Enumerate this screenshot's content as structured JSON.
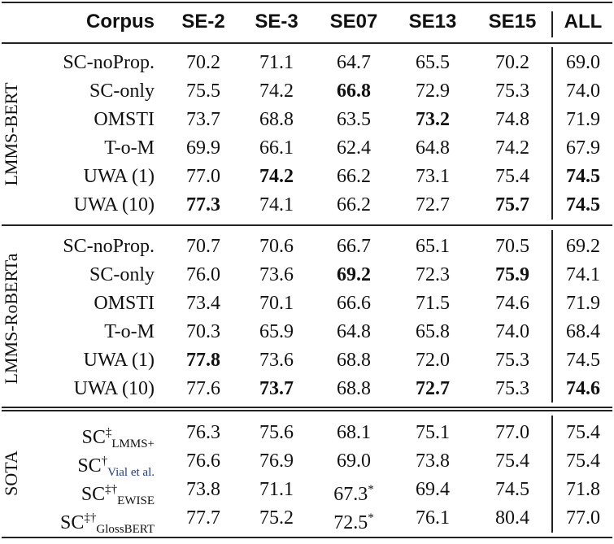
{
  "header": {
    "corpus_label": "Corpus",
    "columns": [
      "SE-2",
      "SE-3",
      "SE07",
      "SE13",
      "SE15",
      "ALL"
    ]
  },
  "groups": [
    {
      "name": "LMMS-BERT",
      "rows": [
        {
          "label": "SC-noProp.",
          "values": [
            "70.2",
            "71.1",
            "64.7",
            "65.5",
            "70.2",
            "69.0"
          ],
          "bold": []
        },
        {
          "label": "SC-only",
          "values": [
            "75.5",
            "74.2",
            "66.8",
            "72.9",
            "75.3",
            "74.0"
          ],
          "bold": [
            2
          ]
        },
        {
          "label": "OMSTI",
          "values": [
            "73.7",
            "68.8",
            "63.5",
            "73.2",
            "74.8",
            "71.9"
          ],
          "bold": [
            3
          ]
        },
        {
          "label": "T-o-M",
          "values": [
            "69.9",
            "66.1",
            "62.4",
            "64.8",
            "74.2",
            "67.9"
          ],
          "bold": []
        },
        {
          "label": "UWA (1)",
          "values": [
            "77.0",
            "74.2",
            "66.2",
            "73.1",
            "75.4",
            "74.5"
          ],
          "bold": [
            1,
            5
          ]
        },
        {
          "label": "UWA (10)",
          "values": [
            "77.3",
            "74.1",
            "66.2",
            "72.7",
            "75.7",
            "74.5"
          ],
          "bold": [
            0,
            4,
            5
          ]
        }
      ]
    },
    {
      "name": "LMMS-RoBERTa",
      "rows": [
        {
          "label": "SC-noProp.",
          "values": [
            "70.7",
            "70.6",
            "66.7",
            "65.1",
            "70.5",
            "69.2"
          ],
          "bold": []
        },
        {
          "label": "SC-only",
          "values": [
            "76.0",
            "73.6",
            "69.2",
            "72.3",
            "75.9",
            "74.1"
          ],
          "bold": [
            2,
            4
          ]
        },
        {
          "label": "OMSTI",
          "values": [
            "73.4",
            "70.1",
            "66.6",
            "71.5",
            "74.6",
            "71.9"
          ],
          "bold": []
        },
        {
          "label": "T-o-M",
          "values": [
            "70.3",
            "65.9",
            "64.8",
            "65.8",
            "74.0",
            "68.4"
          ],
          "bold": []
        },
        {
          "label": "UWA (1)",
          "values": [
            "77.8",
            "73.6",
            "68.8",
            "72.0",
            "75.3",
            "74.5"
          ],
          "bold": [
            0
          ]
        },
        {
          "label": "UWA (10)",
          "values": [
            "77.6",
            "73.7",
            "68.8",
            "72.7",
            "75.3",
            "74.6"
          ],
          "bold": [
            1,
            3,
            5
          ]
        }
      ]
    },
    {
      "name": "SOTA",
      "rows": [
        {
          "label": "SC",
          "sup": "‡",
          "sub": "LMMS+",
          "values": [
            "76.3",
            "75.6",
            "68.1",
            "75.1",
            "77.0",
            "75.4"
          ],
          "bold": []
        },
        {
          "label": "SC",
          "sup": "†",
          "sub": "Vial et al.",
          "values": [
            "76.6",
            "76.9",
            "69.0",
            "73.8",
            "75.4",
            "75.4"
          ],
          "bold": []
        },
        {
          "label": "SC",
          "sup": "‡†",
          "sub": "EWISE",
          "values": [
            "73.8",
            "71.1",
            "67.3",
            "69.4",
            "74.5",
            "71.8"
          ],
          "bold": [],
          "star": 2
        },
        {
          "label": "SC",
          "sup": "‡†",
          "sub": "GlossBERT",
          "values": [
            "77.7",
            "75.2",
            "72.5",
            "76.1",
            "80.4",
            "77.0"
          ],
          "bold": [],
          "star": 2
        }
      ]
    }
  ],
  "star_symbol": "*"
}
